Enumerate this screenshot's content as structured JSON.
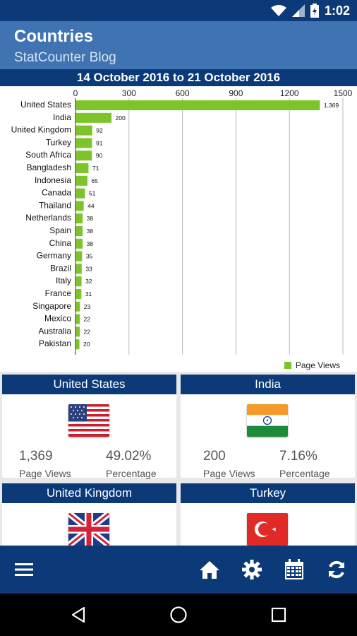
{
  "status_bar": {
    "time": "1:02"
  },
  "app_bar": {
    "title": "Countries",
    "subtitle": "StatCounter Blog"
  },
  "period": "14 October 2016 to 21 October 2016",
  "chart_data": {
    "type": "bar",
    "orientation": "horizontal",
    "categories": [
      "United States",
      "India",
      "United Kingdom",
      "Turkey",
      "South Africa",
      "Bangladesh",
      "Indonesia",
      "Canada",
      "Thailand",
      "Netherlands",
      "Spain",
      "China",
      "Germany",
      "Brazil",
      "Italy",
      "France",
      "Singapore",
      "Mexico",
      "Australia",
      "Pakistan"
    ],
    "series": [
      {
        "name": "Page Views",
        "values": [
          1369,
          200,
          92,
          91,
          90,
          71,
          65,
          51,
          44,
          38,
          38,
          38,
          35,
          33,
          32,
          31,
          23,
          22,
          22,
          20
        ],
        "value_labels": [
          "1,369",
          "200",
          "92",
          "91",
          "90",
          "71",
          "65",
          "51",
          "44",
          "38",
          "38",
          "38",
          "35",
          "33",
          "32",
          "31",
          "23",
          "22",
          "22",
          "20"
        ]
      }
    ],
    "x_ticks": [
      "0",
      "300",
      "600",
      "900",
      "1200",
      "1500"
    ],
    "xlim": [
      0,
      1500
    ],
    "bar_color": "#7dc42a",
    "grid": true,
    "legend": "bottom-right"
  },
  "legend": {
    "label": "Page Views"
  },
  "cards": [
    {
      "country": "United States",
      "flag": "us-flag",
      "value": "1,369",
      "value_label": "Page Views",
      "percent": "49.02%",
      "percent_label": "Percentage"
    },
    {
      "country": "India",
      "flag": "india-flag",
      "value": "200",
      "value_label": "Page Views",
      "percent": "7.16%",
      "percent_label": "Percentage"
    },
    {
      "country": "United Kingdom",
      "flag": "uk-flag"
    },
    {
      "country": "Turkey",
      "flag": "turkey-flag"
    }
  ],
  "bottom_nav": {
    "items": [
      "menu-icon",
      "home-icon",
      "gear-icon",
      "calendar-icon",
      "refresh-icon"
    ]
  },
  "system_nav": {
    "items": [
      "back-icon",
      "home-circle-icon",
      "recents-icon"
    ]
  },
  "colors": {
    "primary_dark": "#0c3a78",
    "primary": "#3f73b1",
    "bar": "#7dc42a"
  }
}
